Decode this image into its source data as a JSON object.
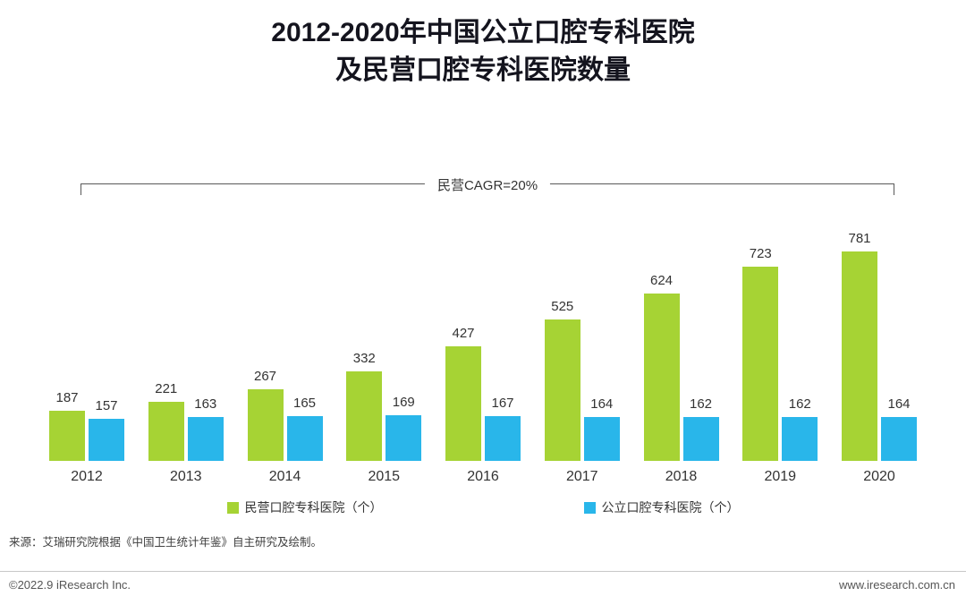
{
  "title": {
    "line1": "2012-2020年中国公立口腔专科医院",
    "line2": "及民营口腔专科医院数量"
  },
  "annotation": {
    "cagr_label": "民营CAGR=20%"
  },
  "chart_data": {
    "type": "bar",
    "title": "2012-2020年中国公立口腔专科医院及民营口腔专科医院数量",
    "categories": [
      "2012",
      "2013",
      "2014",
      "2015",
      "2016",
      "2017",
      "2018",
      "2019",
      "2020"
    ],
    "series": [
      {
        "name": "民营口腔专科医院（个）",
        "color": "#a6d334",
        "values": [
          187,
          221,
          267,
          332,
          427,
          525,
          624,
          723,
          781
        ]
      },
      {
        "name": "公立口腔专科医院（个）",
        "color": "#29b6ea",
        "values": [
          157,
          163,
          165,
          169,
          167,
          164,
          162,
          162,
          164
        ]
      }
    ],
    "xlabel": "",
    "ylabel": "",
    "ylim": [
      0,
      830
    ],
    "grid": false,
    "legend_position": "bottom",
    "annotation": "民营CAGR=20%"
  },
  "source": "来源：艾瑞研究院根据《中国卫生统计年鉴》自主研究及绘制。",
  "footer": {
    "left": "©2022.9 iResearch Inc.",
    "right": "www.iresearch.com.cn"
  }
}
